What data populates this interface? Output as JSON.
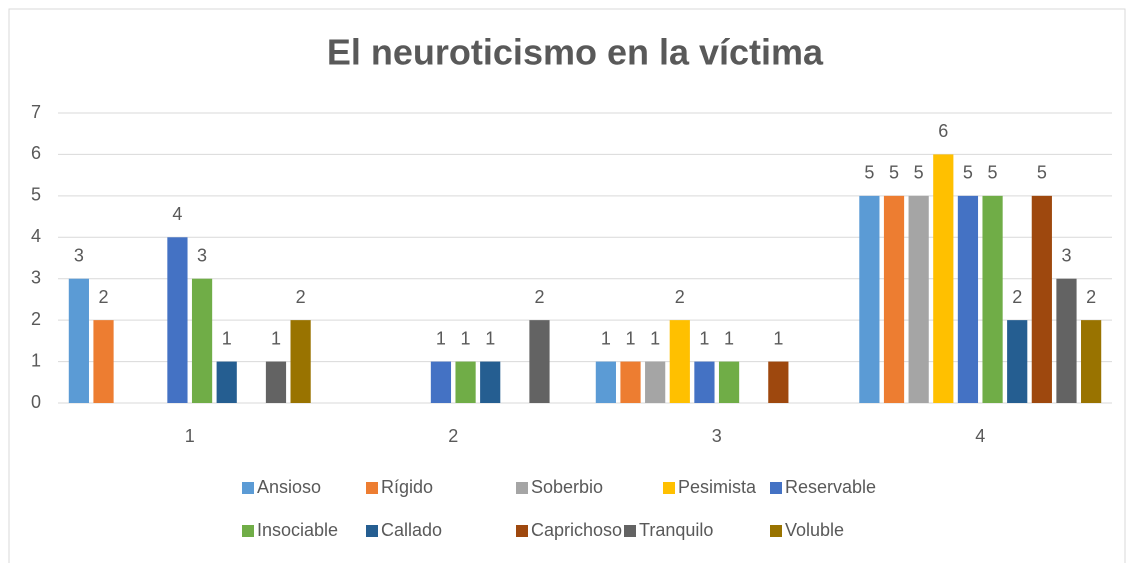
{
  "chart_data": {
    "type": "bar",
    "title": "El neuroticismo en la víctima",
    "categories": [
      "1",
      "2",
      "3",
      "4"
    ],
    "series": [
      {
        "name": "Ansioso",
        "color": "#5b9bd5",
        "values": [
          3,
          null,
          1,
          5
        ]
      },
      {
        "name": "Rígido",
        "color": "#ed7d31",
        "values": [
          2,
          null,
          1,
          5
        ]
      },
      {
        "name": "Soberbio",
        "color": "#a5a5a5",
        "values": [
          null,
          null,
          1,
          5
        ]
      },
      {
        "name": "Pesimista",
        "color": "#ffc000",
        "values": [
          null,
          null,
          2,
          6
        ]
      },
      {
        "name": "Reservable",
        "color": "#4472c4",
        "values": [
          4,
          1,
          1,
          5
        ]
      },
      {
        "name": "Insociable",
        "color": "#70ad47",
        "values": [
          3,
          1,
          1,
          5
        ]
      },
      {
        "name": "Callado",
        "color": "#255e91",
        "values": [
          1,
          1,
          null,
          2
        ]
      },
      {
        "name": "Caprichoso",
        "color": "#9e480e",
        "values": [
          null,
          null,
          1,
          5
        ]
      },
      {
        "name": "Tranquilo",
        "color": "#636363",
        "values": [
          1,
          2,
          null,
          3
        ]
      },
      {
        "name": "Voluble",
        "color": "#997300",
        "values": [
          2,
          null,
          null,
          2
        ]
      }
    ],
    "ylim": [
      0,
      7
    ],
    "yticks": [
      0,
      1,
      2,
      3,
      4,
      5,
      6,
      7
    ],
    "grid": true,
    "legend": "bottom"
  }
}
